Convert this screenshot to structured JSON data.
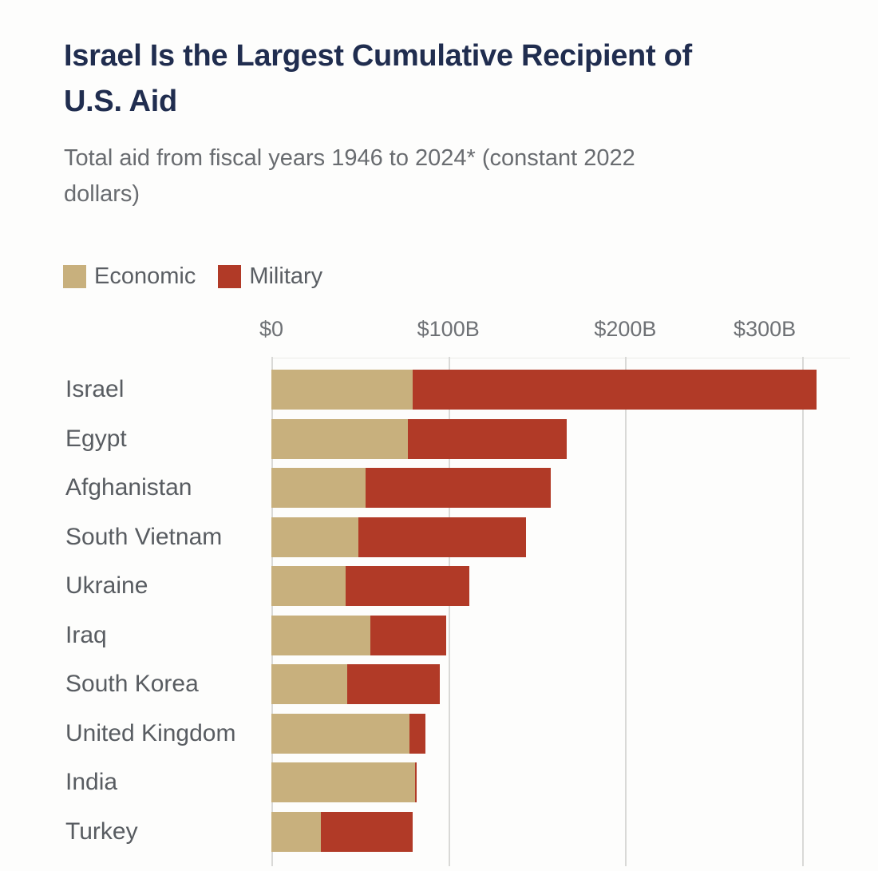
{
  "header": {
    "title_lines": [
      "Israel Is the Largest Cumulative Recipient of",
      "U.S. Aid"
    ],
    "subtitle_lines": [
      "Total aid from fiscal years 1946 to 2024* (constant 2022",
      "dollars)"
    ],
    "title_color": "#202d4f",
    "subtitle_color": "#696c70"
  },
  "legend": {
    "items": [
      {
        "label": "Economic",
        "color": "#c8b07d"
      },
      {
        "label": "Military",
        "color": "#b13a27"
      }
    ]
  },
  "colors": {
    "economic": "#c8b07d",
    "military": "#b13a27",
    "gridline": "#d9d9d7",
    "axis_text": "#6e7175",
    "label_text": "#585c61",
    "background": "#fdfdfc"
  },
  "chart_data": {
    "type": "bar",
    "orientation": "horizontal",
    "stacked": true,
    "title": "Israel Is the Largest Cumulative Recipient of U.S. Aid",
    "subtitle": "Total aid from fiscal years 1946 to 2024* (constant 2022 dollars)",
    "unit": "billions of constant 2022 U.S. dollars",
    "categories": [
      "Israel",
      "Egypt",
      "Afghanistan",
      "South Vietnam",
      "Ukraine",
      "Iraq",
      "South Korea",
      "United Kingdom",
      "India",
      "Turkey"
    ],
    "series": [
      {
        "name": "Economic",
        "color": "#c8b07d",
        "values": [
          80,
          77,
          53,
          49,
          42,
          56,
          43,
          78,
          81,
          28
        ]
      },
      {
        "name": "Military",
        "color": "#b13a27",
        "values": [
          228,
          90,
          105,
          95,
          70,
          43,
          52,
          9,
          1,
          52
        ]
      }
    ],
    "totals": [
      308,
      167,
      158,
      144,
      112,
      99,
      95,
      87,
      82,
      80
    ],
    "x_ticks": [
      {
        "label": "$0",
        "value": 0
      },
      {
        "label": "$100B",
        "value": 100
      },
      {
        "label": "$200B",
        "value": 200
      },
      {
        "label": "$300B",
        "value": 300
      }
    ],
    "xlim": [
      0,
      318
    ],
    "grid": true,
    "legend_position": "top-left"
  }
}
